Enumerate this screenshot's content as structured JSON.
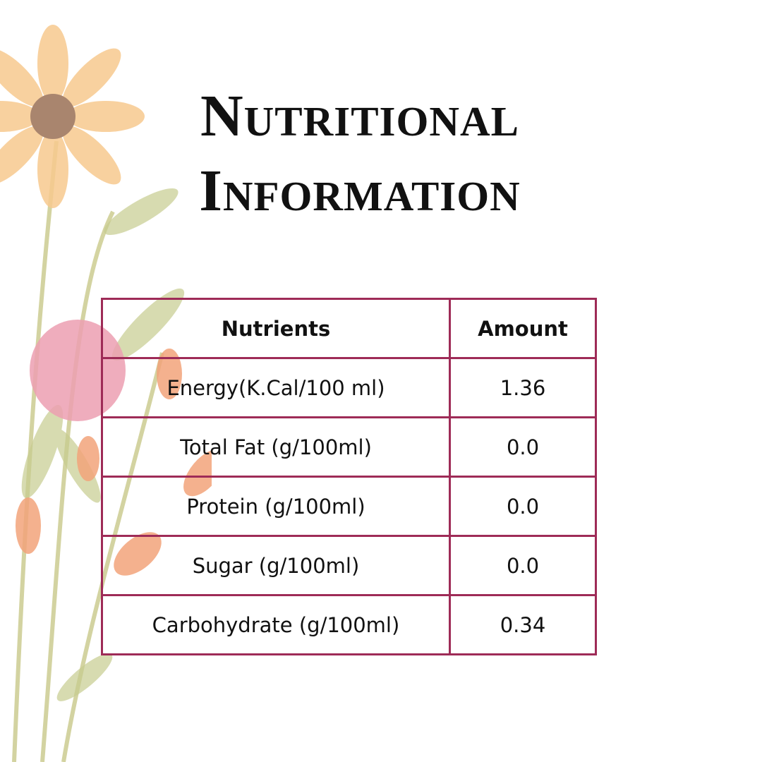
{
  "header": {
    "title": "Nutritional Information"
  },
  "table": {
    "columns": [
      "Nutrients",
      "Amount"
    ],
    "rows": [
      [
        "Energy(K.Cal/100 ml)",
        "1.36"
      ],
      [
        "Total Fat (g/100ml)",
        "0.0"
      ],
      [
        "Protein (g/100ml)",
        "0.0"
      ],
      [
        "Sugar (g/100ml)",
        "0.0"
      ],
      [
        "Carbohydrate (g/100ml)",
        "0.34"
      ]
    ]
  }
}
